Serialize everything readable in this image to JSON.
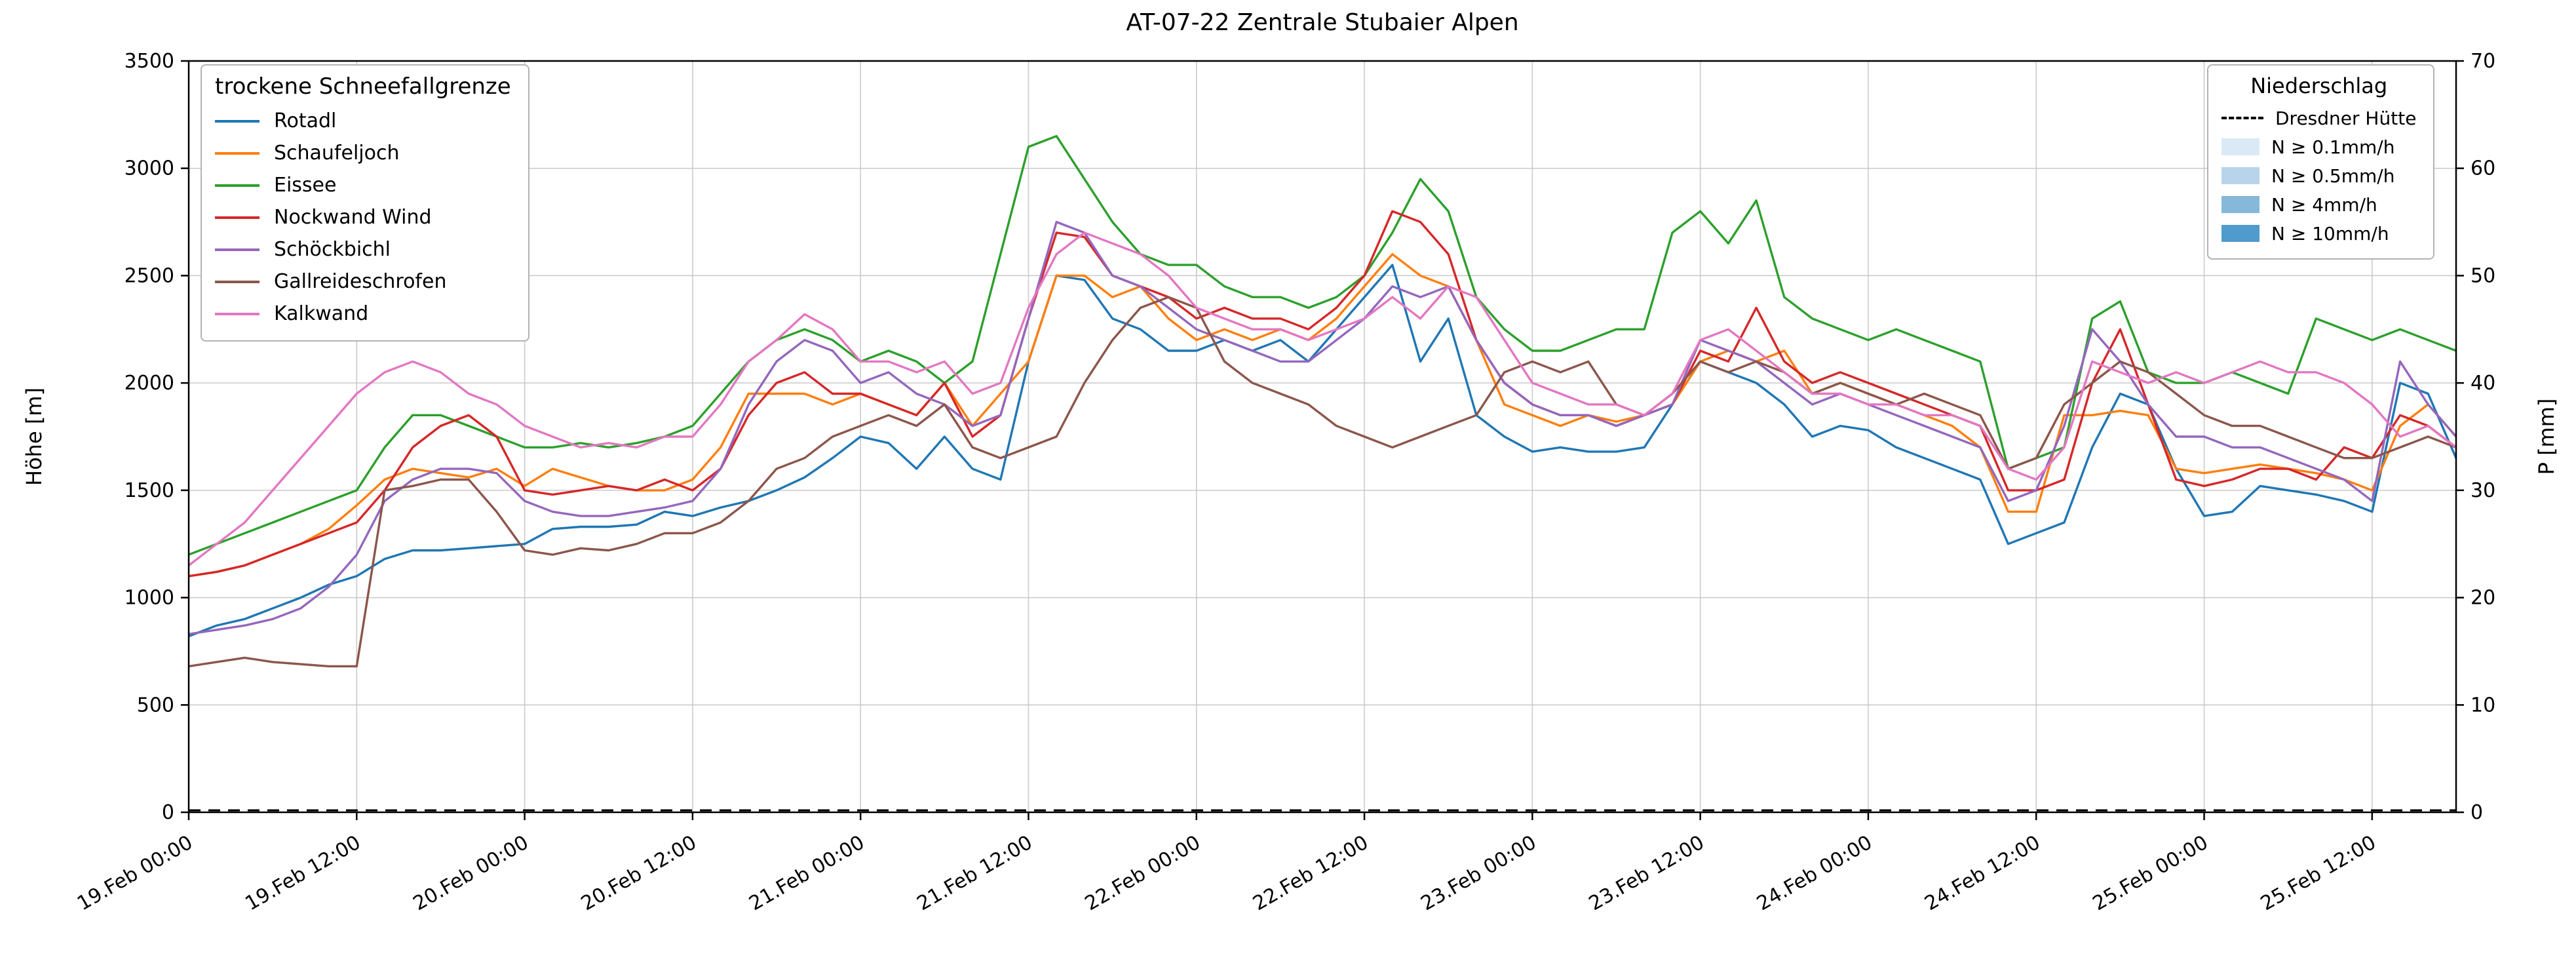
{
  "title": "AT-07-22 Zentrale Stubaier Alpen",
  "axes": {
    "y_left": {
      "label": "Höhe [m]",
      "ticks": [
        0,
        500,
        1000,
        1500,
        2000,
        2500,
        3000,
        3500
      ],
      "range": [
        0,
        3500
      ]
    },
    "y_right": {
      "label": "P [mm]",
      "ticks": [
        0,
        10,
        20,
        30,
        40,
        50,
        60,
        70
      ],
      "range": [
        0,
        70
      ]
    },
    "x": {
      "tick_labels": [
        "19.Feb 00:00",
        "19.Feb 12:00",
        "20.Feb 00:00",
        "20.Feb 12:00",
        "21.Feb 00:00",
        "21.Feb 12:00",
        "22.Feb 00:00",
        "22.Feb 12:00",
        "23.Feb 00:00",
        "23.Feb 12:00",
        "24.Feb 00:00",
        "24.Feb 12:00",
        "25.Feb 00:00",
        "25.Feb 12:00"
      ],
      "tick_interval_hours": 12,
      "range_hours": [
        0,
        162
      ]
    }
  },
  "legends": {
    "snowline": {
      "title": "trockene Schneefallgrenze"
    },
    "precip": {
      "title": "Niederschlag",
      "dashed_entry": {
        "label": "Dresdner Hütte",
        "color": "#000000"
      },
      "intensity_entries": [
        {
          "label": "N ≥ 0.1mm/h",
          "color": "#dbe9f6"
        },
        {
          "label": "N ≥ 0.5mm/h",
          "color": "#b7d4ea"
        },
        {
          "label": "N ≥ 4mm/h",
          "color": "#85b8d9"
        },
        {
          "label": "N ≥ 10mm/h",
          "color": "#4f9bcb"
        }
      ]
    }
  },
  "chart_data": {
    "type": "line",
    "title": "AT-07-22 Zentrale Stubaier Alpen",
    "xlabel": "",
    "ylabel_left": "Höhe [m]",
    "ylabel_right": "P [mm]",
    "ylim_left": [
      0,
      3500
    ],
    "ylim_right": [
      0,
      70
    ],
    "grid": true,
    "x_unit": "hours since 19.Feb 00:00",
    "x_start_hour": 0,
    "x_step_hours": 2,
    "series": [
      {
        "name": "Rotadl",
        "color": "#1f77b4",
        "values": [
          820,
          870,
          900,
          950,
          1000,
          1060,
          1100,
          1180,
          1220,
          1220,
          1230,
          1240,
          1250,
          1320,
          1330,
          1330,
          1340,
          1400,
          1380,
          1420,
          1450,
          1500,
          1560,
          1650,
          1750,
          1720,
          1600,
          1750,
          1600,
          1550,
          2100,
          2500,
          2480,
          2300,
          2250,
          2150,
          2150,
          2200,
          2150,
          2200,
          2100,
          2250,
          2400,
          2550,
          2100,
          2300,
          1850,
          1750,
          1680,
          1700,
          1680,
          1680,
          1700,
          1900,
          2100,
          2050,
          2000,
          1900,
          1750,
          1800,
          1780,
          1700,
          1650,
          1600,
          1550,
          1250,
          1300,
          1350,
          1700,
          1950,
          1900,
          1600,
          1380,
          1400,
          1520,
          1500,
          1480,
          1450,
          1400,
          2000,
          1950,
          1650
        ]
      },
      {
        "name": "Schaufeljoch",
        "color": "#ff7f0e",
        "values": [
          1100,
          1120,
          1150,
          1200,
          1250,
          1320,
          1430,
          1550,
          1600,
          1580,
          1560,
          1600,
          1520,
          1600,
          1560,
          1520,
          1500,
          1500,
          1550,
          1700,
          1950,
          1950,
          1950,
          1900,
          1950,
          1900,
          1850,
          2000,
          1800,
          1950,
          2100,
          2500,
          2500,
          2400,
          2450,
          2300,
          2200,
          2250,
          2200,
          2250,
          2200,
          2300,
          2450,
          2600,
          2500,
          2450,
          2200,
          1900,
          1850,
          1800,
          1850,
          1820,
          1850,
          1900,
          2100,
          2150,
          2100,
          2150,
          1950,
          2000,
          1950,
          1900,
          1850,
          1800,
          1700,
          1400,
          1400,
          1850,
          1850,
          1870,
          1850,
          1600,
          1580,
          1600,
          1620,
          1600,
          1580,
          1550,
          1500,
          1800,
          1900,
          1750
        ]
      },
      {
        "name": "Eissee",
        "color": "#2ca02c",
        "values": [
          1200,
          1250,
          1300,
          1350,
          1400,
          1450,
          1500,
          1700,
          1850,
          1850,
          1800,
          1750,
          1700,
          1700,
          1720,
          1700,
          1720,
          1750,
          1800,
          1950,
          2100,
          2200,
          2250,
          2200,
          2100,
          2150,
          2100,
          2000,
          2100,
          2600,
          3100,
          3150,
          2950,
          2750,
          2600,
          2550,
          2550,
          2450,
          2400,
          2400,
          2350,
          2400,
          2500,
          2700,
          2950,
          2800,
          2400,
          2250,
          2150,
          2150,
          2200,
          2250,
          2250,
          2700,
          2800,
          2650,
          2850,
          2400,
          2300,
          2250,
          2200,
          2250,
          2200,
          2150,
          2100,
          1600,
          1650,
          1700,
          2300,
          2380,
          2050,
          2000,
          2000,
          2050,
          2000,
          1950,
          2300,
          2250,
          2200,
          2250,
          2200,
          2150
        ]
      },
      {
        "name": "Nockwand Wind",
        "color": "#d62728",
        "values": [
          1100,
          1120,
          1150,
          1200,
          1250,
          1300,
          1350,
          1500,
          1700,
          1800,
          1850,
          1750,
          1500,
          1480,
          1500,
          1520,
          1500,
          1550,
          1500,
          1600,
          1850,
          2000,
          2050,
          1950,
          1950,
          1900,
          1850,
          2000,
          1750,
          1850,
          2300,
          2700,
          2680,
          2500,
          2450,
          2400,
          2300,
          2350,
          2300,
          2300,
          2250,
          2350,
          2500,
          2800,
          2750,
          2600,
          2200,
          2000,
          1900,
          1850,
          1850,
          1800,
          1850,
          1900,
          2150,
          2100,
          2350,
          2100,
          2000,
          2050,
          2000,
          1950,
          1900,
          1850,
          1800,
          1500,
          1500,
          1550,
          2000,
          2250,
          1900,
          1550,
          1520,
          1550,
          1600,
          1600,
          1550,
          1700,
          1650,
          1850,
          1800,
          1700
        ]
      },
      {
        "name": "Schöckbichl",
        "color": "#9467bd",
        "values": [
          830,
          850,
          870,
          900,
          950,
          1050,
          1200,
          1450,
          1550,
          1600,
          1600,
          1580,
          1450,
          1400,
          1380,
          1380,
          1400,
          1420,
          1450,
          1600,
          1900,
          2100,
          2200,
          2150,
          2000,
          2050,
          1950,
          1900,
          1800,
          1850,
          2300,
          2750,
          2700,
          2500,
          2450,
          2350,
          2250,
          2200,
          2150,
          2100,
          2100,
          2200,
          2300,
          2450,
          2400,
          2450,
          2200,
          2000,
          1900,
          1850,
          1850,
          1800,
          1850,
          1900,
          2200,
          2150,
          2100,
          2000,
          1900,
          1950,
          1900,
          1850,
          1800,
          1750,
          1700,
          1450,
          1500,
          1800,
          2250,
          2100,
          1900,
          1750,
          1750,
          1700,
          1700,
          1650,
          1600,
          1550,
          1450,
          2100,
          1900,
          1750
        ]
      },
      {
        "name": "Gallreideschrofen",
        "color": "#8c564b",
        "values": [
          680,
          700,
          720,
          700,
          690,
          680,
          680,
          1500,
          1520,
          1550,
          1550,
          1400,
          1220,
          1200,
          1230,
          1220,
          1250,
          1300,
          1300,
          1350,
          1450,
          1600,
          1650,
          1750,
          1800,
          1850,
          1800,
          1900,
          1700,
          1650,
          1700,
          1750,
          2000,
          2200,
          2350,
          2400,
          2350,
          2100,
          2000,
          1950,
          1900,
          1800,
          1750,
          1700,
          1750,
          1800,
          1850,
          2050,
          2100,
          2050,
          2100,
          1900,
          1850,
          1950,
          2100,
          2050,
          2100,
          2050,
          1950,
          2000,
          1950,
          1900,
          1950,
          1900,
          1850,
          1600,
          1650,
          1900,
          2000,
          2100,
          2050,
          1950,
          1850,
          1800,
          1800,
          1750,
          1700,
          1650,
          1650,
          1700,
          1750,
          1700
        ]
      },
      {
        "name": "Kalkwand",
        "color": "#e377c2",
        "values": [
          1150,
          1250,
          1350,
          1500,
          1650,
          1800,
          1950,
          2050,
          2100,
          2050,
          1950,
          1900,
          1800,
          1750,
          1700,
          1720,
          1700,
          1750,
          1750,
          1900,
          2100,
          2200,
          2320,
          2250,
          2100,
          2100,
          2050,
          2100,
          1950,
          2000,
          2350,
          2600,
          2700,
          2650,
          2600,
          2500,
          2350,
          2300,
          2250,
          2250,
          2200,
          2250,
          2300,
          2400,
          2300,
          2450,
          2400,
          2200,
          2000,
          1950,
          1900,
          1900,
          1850,
          1950,
          2200,
          2250,
          2150,
          2050,
          1950,
          1950,
          1900,
          1900,
          1850,
          1850,
          1800,
          1600,
          1550,
          1700,
          2100,
          2050,
          2000,
          2050,
          2000,
          2050,
          2100,
          2050,
          2050,
          2000,
          1900,
          1750,
          1800,
          1700
        ]
      }
    ],
    "precipitation_line": {
      "name": "Dresdner Hütte",
      "axis": "right",
      "style": "dashed",
      "color": "#000000",
      "value_mm": 0
    }
  }
}
